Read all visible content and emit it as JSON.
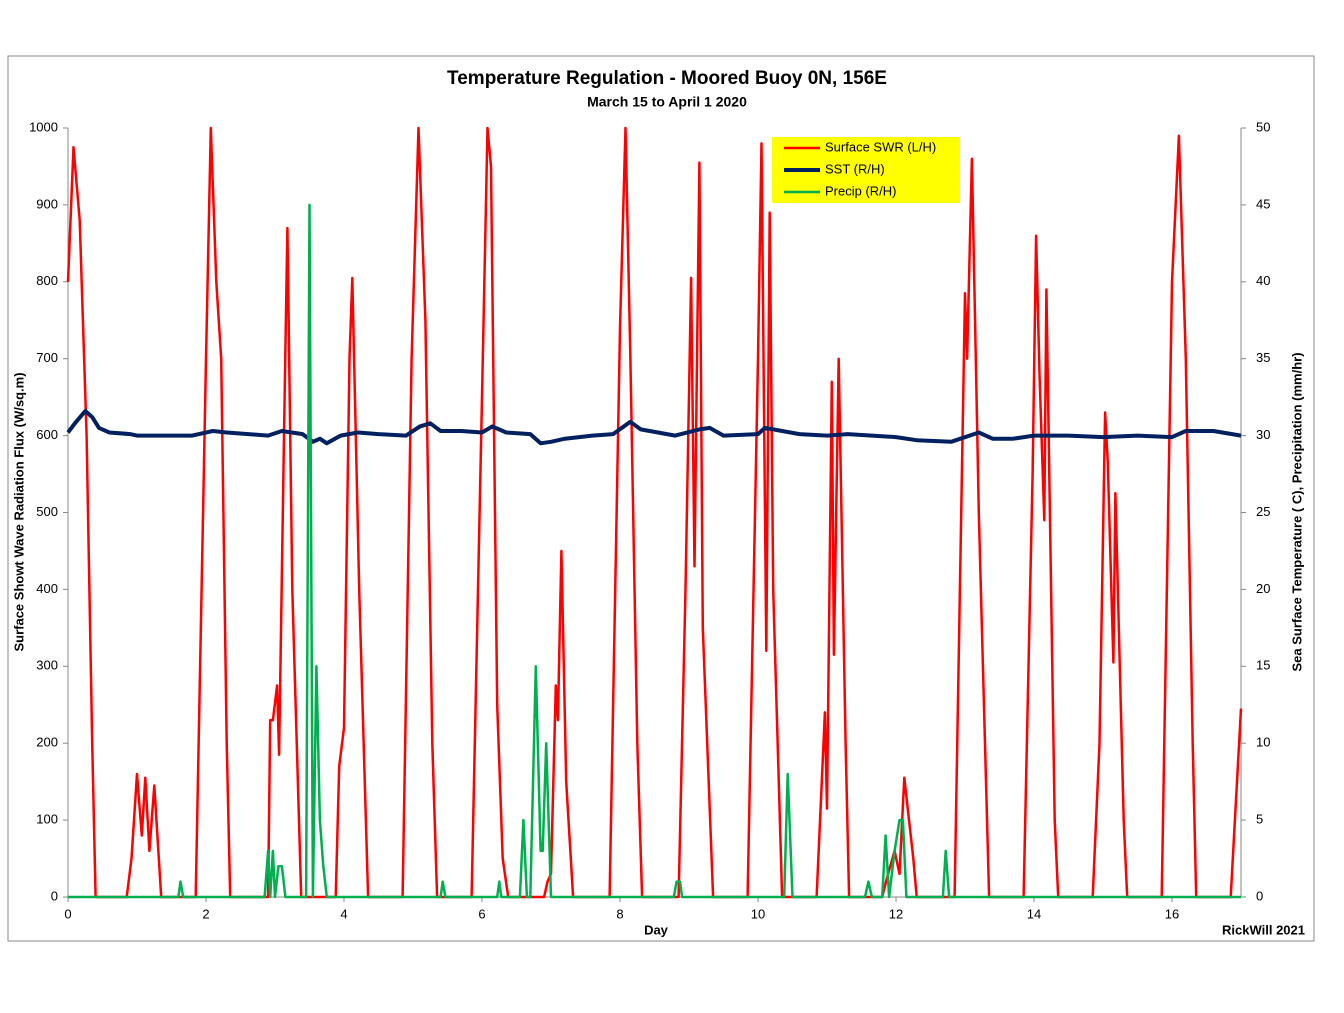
{
  "chart_data": {
    "type": "line",
    "title": "Temperature Regulation - Moored Buoy 0N, 156E",
    "subtitle": "March 15 to April 1 2020",
    "x_label": "Day",
    "y_label": "Surface Showt Wave Radiation Flux (W/sq.m)",
    "y2_label": "Sea Surface Temperature ( C), Precipitation (mm/hr)",
    "credit": "RickWill 2021",
    "xlim": [
      0,
      17
    ],
    "xticks": [
      0,
      2,
      4,
      6,
      8,
      10,
      12,
      14,
      16
    ],
    "ylim": [
      0,
      1000
    ],
    "yticks": [
      0,
      100,
      200,
      300,
      400,
      500,
      600,
      700,
      800,
      900,
      1000
    ],
    "y2lim": [
      0,
      50
    ],
    "y2ticks": [
      0,
      5,
      10,
      15,
      20,
      25,
      30,
      35,
      40,
      45,
      50
    ],
    "grid": false,
    "legend": "top-center",
    "legend_color": "#ffff00",
    "series": [
      {
        "name": "Surface SWR (L/H)",
        "color": "#ff0000",
        "width": 2.5,
        "x": [
          0,
          0.08,
          0.17,
          0.27,
          0.35,
          0.4,
          0.85,
          0.92,
          1.0,
          1.07,
          1.12,
          1.18,
          1.25,
          1.35,
          1.85,
          2.0,
          2.07,
          2.15,
          2.22,
          2.3,
          2.35,
          2.9,
          2.93,
          2.97,
          3.03,
          3.06,
          3.13,
          3.18,
          3.25,
          3.38,
          3.88,
          3.93,
          4.0,
          4.08,
          4.12,
          4.22,
          4.35,
          4.85,
          4.98,
          5.08,
          5.18,
          5.28,
          5.35,
          5.85,
          6.0,
          6.08,
          6.13,
          6.22,
          6.3,
          6.38,
          6.9,
          6.95,
          7.0,
          7.07,
          7.1,
          7.15,
          7.22,
          7.32,
          7.85,
          8.0,
          8.08,
          8.15,
          8.25,
          8.32,
          8.85,
          8.95,
          9.03,
          9.08,
          9.15,
          9.2,
          9.35,
          9.85,
          10.0,
          10.05,
          10.12,
          10.17,
          10.22,
          10.35,
          10.85,
          10.97,
          11.0,
          11.07,
          11.1,
          11.17,
          11.27,
          11.32,
          11.8,
          11.87,
          11.98,
          12.05,
          12.12,
          12.25,
          12.3,
          12.85,
          13.0,
          13.03,
          13.1,
          13.2,
          13.35,
          13.85,
          13.98,
          14.03,
          14.08,
          14.15,
          14.18,
          14.3,
          14.35,
          14.85,
          14.95,
          15.03,
          15.07,
          15.15,
          15.18,
          15.3,
          15.35,
          15.85,
          16.0,
          16.1,
          16.2,
          16.3,
          16.35,
          16.85,
          17.0
        ],
        "values": [
          800,
          975,
          880,
          600,
          200,
          0,
          0,
          50,
          160,
          80,
          155,
          60,
          145,
          0,
          0,
          700,
          1000,
          800,
          700,
          200,
          0,
          0,
          230,
          230,
          275,
          185,
          600,
          870,
          400,
          0,
          0,
          170,
          220,
          700,
          805,
          400,
          0,
          0,
          700,
          1000,
          750,
          200,
          0,
          0,
          650,
          1000,
          950,
          250,
          50,
          0,
          0,
          20,
          30,
          275,
          230,
          450,
          150,
          0,
          0,
          740,
          1000,
          700,
          200,
          0,
          0,
          400,
          805,
          430,
          955,
          350,
          0,
          0,
          700,
          980,
          320,
          890,
          400,
          0,
          0,
          240,
          115,
          670,
          315,
          700,
          200,
          0,
          0,
          25,
          60,
          30,
          155,
          50,
          0,
          0,
          785,
          700,
          960,
          500,
          0,
          0,
          550,
          860,
          680,
          490,
          790,
          100,
          0,
          0,
          200,
          630,
          565,
          305,
          525,
          100,
          0,
          0,
          800,
          990,
          700,
          200,
          0,
          0,
          245
        ]
      },
      {
        "name": "SST (R/H)",
        "color": "#002060",
        "width": 4,
        "axis": "y2",
        "x": [
          0,
          0.1,
          0.25,
          0.35,
          0.45,
          0.6,
          0.9,
          1.0,
          1.3,
          1.8,
          2.1,
          2.3,
          2.9,
          3.1,
          3.4,
          3.55,
          3.65,
          3.75,
          3.95,
          4.2,
          4.5,
          4.9,
          5.1,
          5.25,
          5.4,
          5.7,
          6.0,
          6.15,
          6.35,
          6.7,
          6.85,
          7.0,
          7.2,
          7.6,
          7.9,
          8.15,
          8.3,
          8.8,
          9.15,
          9.3,
          9.5,
          10.0,
          10.1,
          10.6,
          11.0,
          11.3,
          12.0,
          12.3,
          12.8,
          13.2,
          13.4,
          13.7,
          14.0,
          14.5,
          15.0,
          15.5,
          16.0,
          16.2,
          16.6,
          17.0
        ],
        "values": [
          30.2,
          30.8,
          31.6,
          31.2,
          30.5,
          30.2,
          30.1,
          30.0,
          30.0,
          30.0,
          30.3,
          30.2,
          30.0,
          30.3,
          30.1,
          29.6,
          29.8,
          29.5,
          30.0,
          30.2,
          30.1,
          30.0,
          30.6,
          30.8,
          30.3,
          30.3,
          30.2,
          30.6,
          30.2,
          30.1,
          29.5,
          29.6,
          29.8,
          30.0,
          30.1,
          30.9,
          30.4,
          30.0,
          30.4,
          30.5,
          30.0,
          30.1,
          30.5,
          30.1,
          30.0,
          30.1,
          29.9,
          29.7,
          29.6,
          30.2,
          29.8,
          29.8,
          30.0,
          30.0,
          29.9,
          30.0,
          29.9,
          30.3,
          30.3,
          30.0
        ]
      },
      {
        "name": "Precip (R/H)",
        "color": "#00b050",
        "width": 2.5,
        "axis": "y2",
        "x": [
          0,
          1.6,
          1.63,
          1.67,
          2.85,
          2.9,
          2.93,
          2.97,
          3.0,
          3.05,
          3.1,
          3.15,
          3.45,
          3.5,
          3.55,
          3.6,
          3.65,
          3.7,
          3.75,
          5.4,
          5.43,
          5.47,
          6.22,
          6.25,
          6.28,
          6.55,
          6.6,
          6.65,
          6.7,
          6.78,
          6.85,
          6.88,
          6.93,
          7.0,
          8.78,
          8.82,
          8.87,
          8.9,
          10.38,
          10.43,
          10.5,
          11.55,
          11.6,
          11.65,
          11.8,
          11.85,
          11.9,
          11.98,
          12.05,
          12.1,
          12.15,
          12.68,
          12.72,
          12.77,
          17.0
        ],
        "values": [
          0,
          0,
          1,
          0,
          0,
          3,
          0,
          3,
          0,
          2,
          2,
          0,
          0,
          45,
          0,
          15,
          5,
          2,
          0,
          0,
          1,
          0,
          0,
          1,
          0,
          0,
          5,
          0,
          0,
          15,
          3,
          3,
          10,
          0,
          0,
          1,
          1,
          0,
          0,
          8,
          0,
          0,
          1,
          0,
          0,
          4,
          0,
          3,
          5,
          5,
          0,
          0,
          3,
          0,
          0
        ]
      }
    ]
  }
}
